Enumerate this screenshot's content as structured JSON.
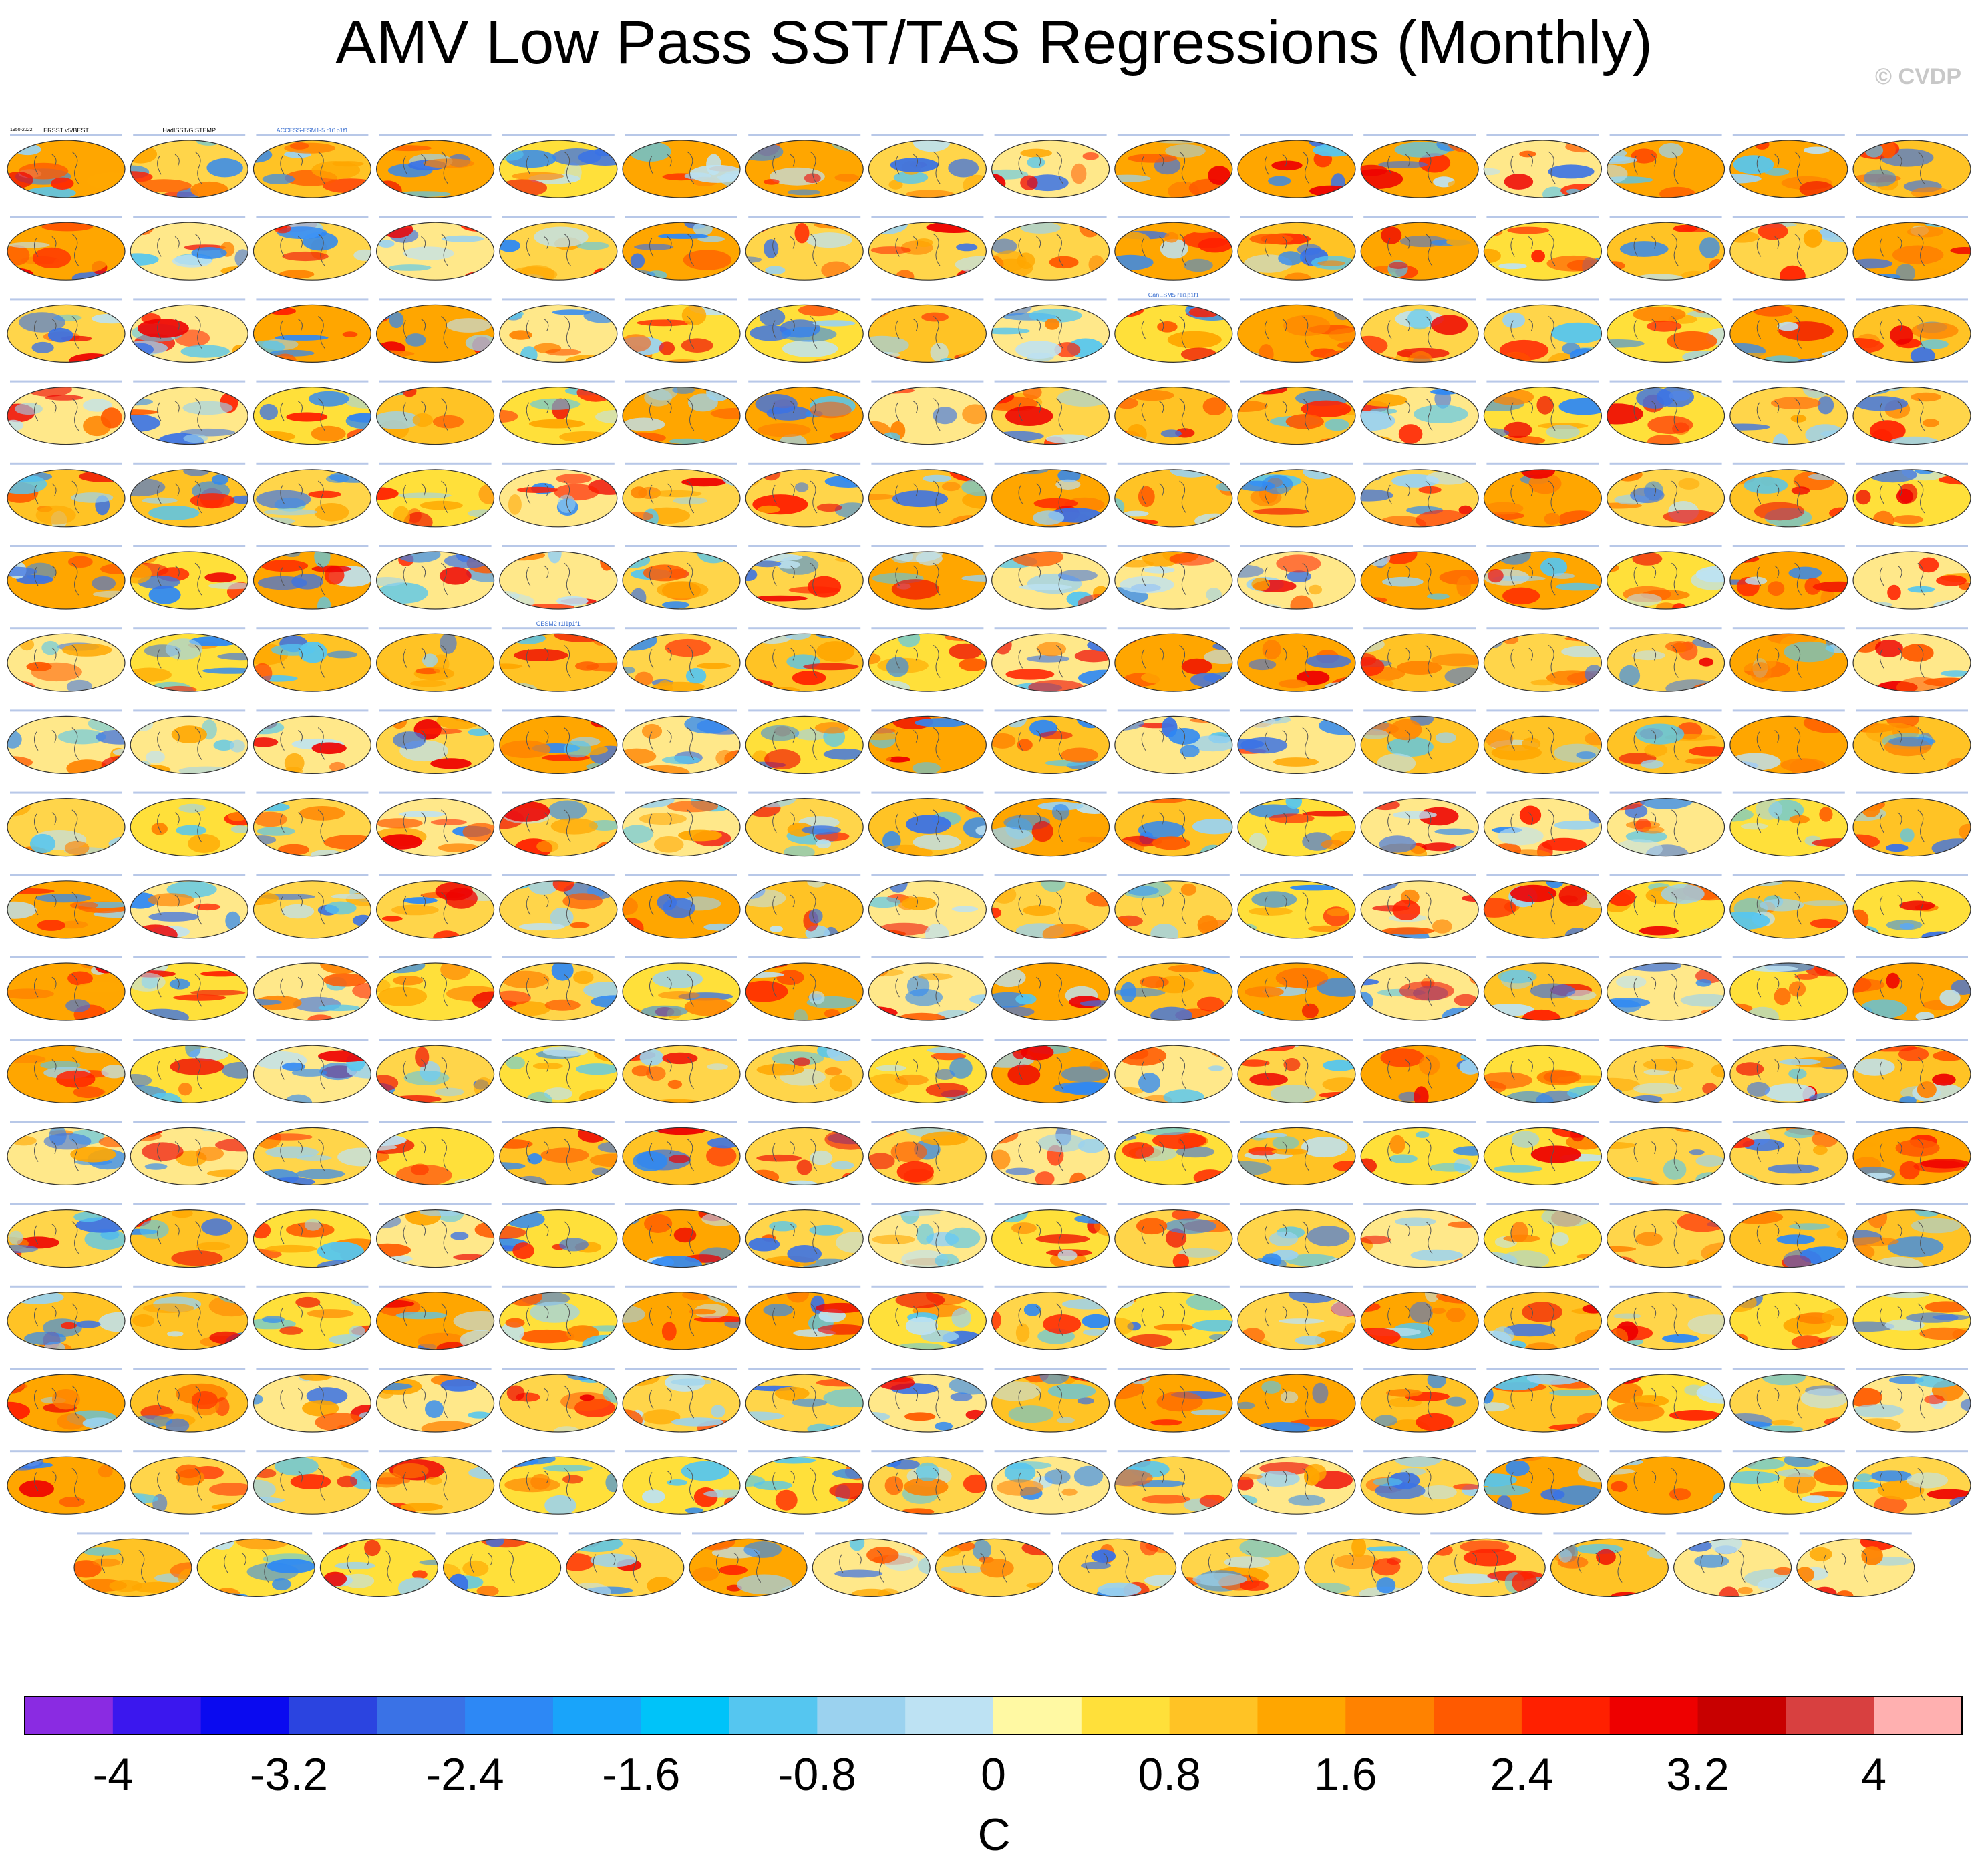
{
  "title": "AMV Low Pass SST/TAS Regressions (Monthly)",
  "credit": "© CVDP",
  "chart_data": {
    "type": "heatmap",
    "title": "AMV Low Pass SST/TAS Regressions (Monthly)",
    "panel_grid": {
      "full_rows": 17,
      "columns": 16,
      "last_row_panels": 15
    },
    "panel_header_examples": [
      "ERSST v5/BEST",
      "HadISST/GISTEMP",
      "ACCESS-ESM1-5 r1i1p1f1",
      "CanESM5 r1i1p1f1",
      "CESM2 r1i1p1f1",
      "1950-2022"
    ],
    "colorbar": {
      "label": "C",
      "ticks": [
        "-4",
        "-3.2",
        "-2.4",
        "-1.6",
        "-0.8",
        "0",
        "0.8",
        "1.6",
        "2.4",
        "3.2",
        "4"
      ],
      "range": [
        -4.4,
        4.4
      ],
      "bin_width": 0.4,
      "colors": [
        "#8a2be2",
        "#3b17ee",
        "#0a0af0",
        "#2b44e0",
        "#3a72e6",
        "#2d88f5",
        "#19a4fa",
        "#00c3f9",
        "#55c6f0",
        "#9bd2ef",
        "#bde2f3",
        "#fff9a3",
        "#ffe03a",
        "#ffc325",
        "#ffa600",
        "#ff8200",
        "#ff5a00",
        "#ff2000",
        "#ee0000",
        "#c80000",
        "#d84040",
        "#ffb0b0"
      ]
    }
  }
}
